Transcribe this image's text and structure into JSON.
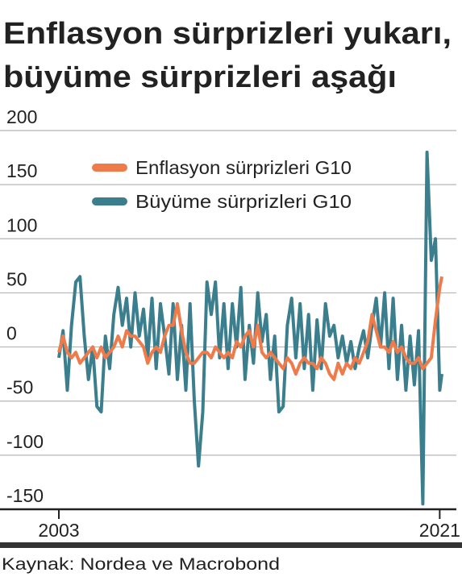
{
  "chart_data": {
    "type": "line",
    "title": [
      "Enflasyon sürprizleri yukarı,",
      "büyüme sürprizleri aşağı"
    ],
    "source": "Kaynak: Nordea ve Macrobond",
    "x": [
      2003.0,
      2003.2,
      2003.4,
      2003.6,
      2003.8,
      2004.0,
      2004.2,
      2004.4,
      2004.6,
      2004.8,
      2005.0,
      2005.2,
      2005.4,
      2005.6,
      2005.8,
      2006.0,
      2006.2,
      2006.4,
      2006.6,
      2006.8,
      2007.0,
      2007.2,
      2007.4,
      2007.6,
      2007.8,
      2008.0,
      2008.2,
      2008.4,
      2008.6,
      2008.8,
      2009.0,
      2009.2,
      2009.4,
      2009.6,
      2009.8,
      2010.0,
      2010.2,
      2010.4,
      2010.6,
      2010.8,
      2011.0,
      2011.2,
      2011.4,
      2011.6,
      2011.8,
      2012.0,
      2012.2,
      2012.4,
      2012.6,
      2012.8,
      2013.0,
      2013.2,
      2013.4,
      2013.6,
      2013.8,
      2014.0,
      2014.2,
      2014.4,
      2014.6,
      2014.8,
      2015.0,
      2015.2,
      2015.4,
      2015.6,
      2015.8,
      2016.0,
      2016.2,
      2016.4,
      2016.6,
      2016.8,
      2017.0,
      2017.2,
      2017.4,
      2017.6,
      2017.8,
      2018.0,
      2018.2,
      2018.4,
      2018.6,
      2018.8,
      2019.0,
      2019.2,
      2019.4,
      2019.6,
      2019.8,
      2020.0,
      2020.2,
      2020.4,
      2020.6,
      2020.8,
      2021.0,
      2021.1
    ],
    "series": [
      {
        "name": "Büyüme sürprizleri G10",
        "color": "#3b7f8e",
        "values": [
          -10,
          15,
          -40,
          20,
          60,
          65,
          10,
          -30,
          0,
          -55,
          -60,
          10,
          -20,
          30,
          55,
          20,
          45,
          0,
          50,
          10,
          35,
          -10,
          45,
          -20,
          40,
          10,
          -25,
          40,
          -30,
          20,
          -40,
          40,
          -50,
          -110,
          -60,
          60,
          30,
          60,
          -10,
          40,
          -20,
          40,
          0,
          55,
          -30,
          20,
          -15,
          50,
          5,
          30,
          -30,
          10,
          -60,
          -55,
          20,
          45,
          -10,
          40,
          -20,
          30,
          -40,
          25,
          -20,
          40,
          10,
          20,
          -10,
          10,
          -15,
          5,
          -20,
          0,
          15,
          -10,
          20,
          45,
          0,
          50,
          -20,
          45,
          -30,
          20,
          -40,
          10,
          -35,
          15,
          -145,
          180,
          80,
          100,
          -40,
          -25
        ]
      },
      {
        "name": "Enflasyon sürprizleri G10",
        "color": "#f07b4a",
        "values": [
          -5,
          10,
          -5,
          -10,
          -5,
          -15,
          -10,
          -5,
          0,
          -10,
          0,
          -10,
          -5,
          0,
          10,
          0,
          15,
          10,
          10,
          5,
          0,
          -15,
          -5,
          0,
          -5,
          10,
          20,
          20,
          40,
          15,
          -5,
          -15,
          -15,
          -10,
          -5,
          -5,
          -10,
          0,
          -5,
          -10,
          -5,
          -10,
          5,
          0,
          10,
          15,
          0,
          20,
          -5,
          -10,
          -5,
          -10,
          -15,
          -20,
          -10,
          -15,
          -25,
          -15,
          -10,
          -15,
          -15,
          -20,
          -10,
          -15,
          -25,
          -30,
          -15,
          -25,
          -15,
          -20,
          -10,
          -15,
          -5,
          5,
          30,
          15,
          0,
          0,
          -5,
          5,
          -5,
          0,
          -10,
          -15,
          -15,
          -10,
          -20,
          -15,
          -10,
          25,
          55,
          65
        ]
      }
    ],
    "legend_order": [
      1,
      0
    ],
    "xlim": [
      2003,
      2021.1
    ],
    "xticks": [
      2003,
      2021
    ],
    "ylim": [
      -150,
      200
    ],
    "yticks": [
      -150,
      -100,
      -50,
      0,
      50,
      100,
      150,
      200
    ],
    "grid": true
  }
}
